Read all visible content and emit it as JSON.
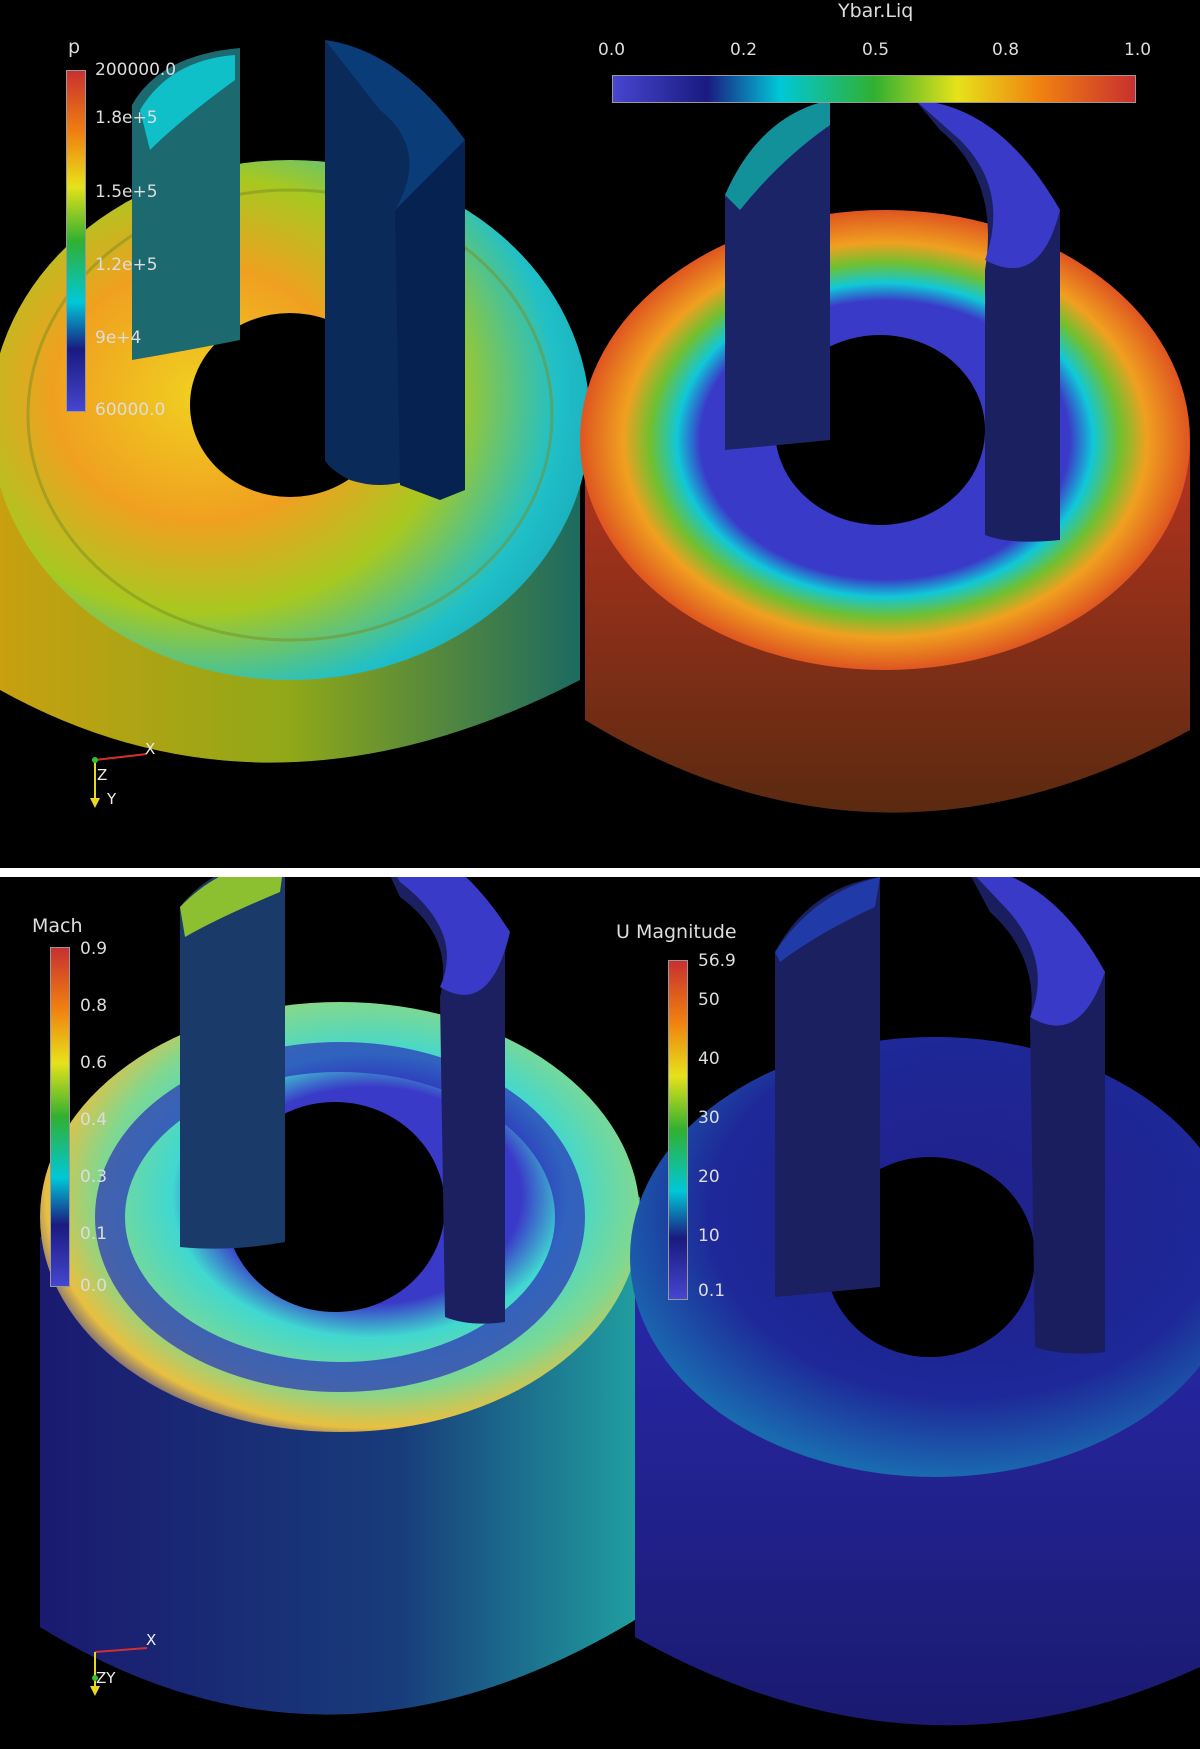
{
  "viewports": {
    "top": {
      "pressure_legend": {
        "title": "p",
        "ticks": [
          "200000.0",
          "1.8e+5",
          "1.5e+5",
          "1.2e+5",
          "9e+4",
          "60000.0"
        ]
      },
      "liquid_legend": {
        "title": "Ybar.Liq",
        "ticks": [
          "0.0",
          "0.2",
          "0.5",
          "0.8",
          "1.0"
        ]
      },
      "axes": {
        "x": "X",
        "z": "Z",
        "y": "Y"
      }
    },
    "bottom": {
      "mach_legend": {
        "title": "Mach",
        "ticks": [
          "0.9",
          "0.8",
          "0.6",
          "0.4",
          "0.3",
          "0.1",
          "0.0"
        ]
      },
      "velocity_legend": {
        "title": "U Magnitude",
        "ticks": [
          "56.9",
          "50",
          "40",
          "30",
          "20",
          "10",
          "0.1"
        ]
      },
      "axes": {
        "x": "X",
        "zy": "ZY"
      }
    }
  },
  "colors": {
    "background": "#000000",
    "divider": "#ffffff",
    "colormap": [
      "#3b3bc4",
      "#1a1a8a",
      "#00c8d8",
      "#40c040",
      "#e8e020",
      "#f08010",
      "#c83030"
    ]
  }
}
